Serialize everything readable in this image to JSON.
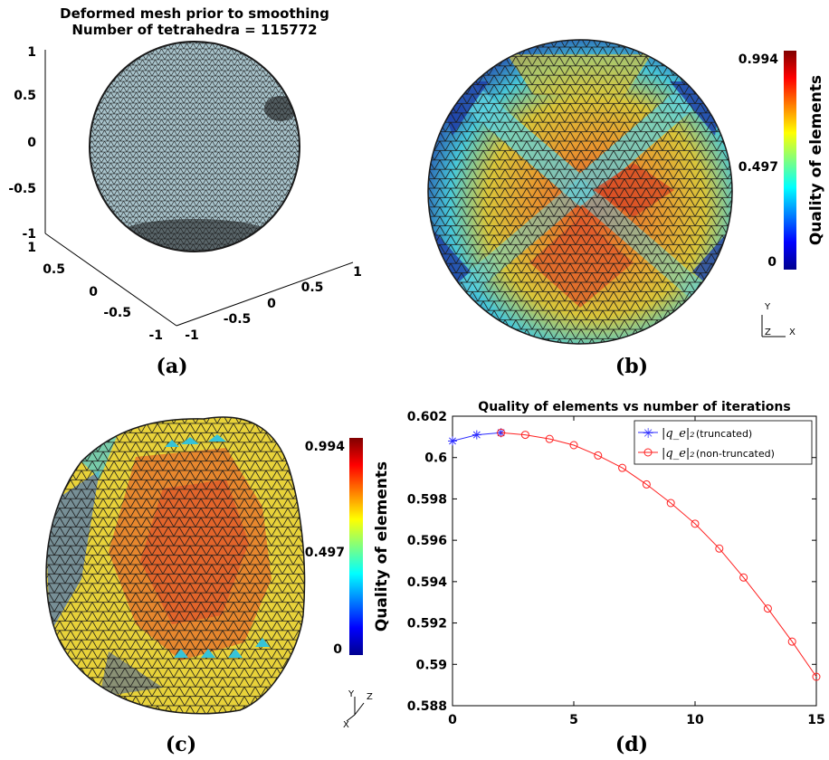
{
  "panels": {
    "a": {
      "label": "(a)",
      "title_line1": "Deformed mesh prior to smoothing",
      "title_line2": "Number of tetrahedra = 115772",
      "z_ticks": [
        "1",
        "0.5",
        "0",
        "-0.5",
        "-1"
      ],
      "y_ticks": [
        "1",
        "0.5",
        "0",
        "-0.5",
        "-1"
      ],
      "x_ticks": [
        "-1",
        "-0.5",
        "0",
        "0.5",
        "1"
      ]
    },
    "b": {
      "label": "(b)",
      "colorbar": {
        "label": "Quality of elements",
        "ticks": [
          "0.994",
          "0.497",
          "0"
        ]
      },
      "axes_triad": {
        "y": "Y",
        "z": "Z",
        "x": "X"
      }
    },
    "c": {
      "label": "(c)",
      "colorbar": {
        "label": "Quality of elements",
        "ticks": [
          "0.994",
          "0.497",
          "0"
        ]
      },
      "axes_triad": {
        "y": "Y",
        "z": "Z",
        "x": "X"
      }
    },
    "d": {
      "label": "(d)"
    }
  },
  "colors": {
    "truncated": "#2b2bff",
    "non_truncated": "#ff2020",
    "mesh_fill": "#a9c4cc",
    "mesh_line": "#1a1a1a"
  },
  "chart_data": {
    "type": "line",
    "title": "Quality of elements vs number of iterations",
    "xlabel": "",
    "ylabel": "",
    "xlim": [
      0,
      15
    ],
    "ylim": [
      0.588,
      0.602
    ],
    "x_ticks": [
      "0",
      "5",
      "10",
      "15"
    ],
    "y_ticks": [
      "0.602",
      "0.6",
      "0.598",
      "0.596",
      "0.594",
      "0.592",
      "0.59",
      "0.588"
    ],
    "grid": false,
    "legend_position": "top-right",
    "series": [
      {
        "name": "|q_e|2 (truncated)",
        "name_math": "|q_e|₂",
        "name_note": "(truncated)",
        "marker": "star",
        "x": [
          0,
          1,
          2
        ],
        "values": [
          0.6008,
          0.6011,
          0.6012
        ]
      },
      {
        "name": "|q_e|2 (non-truncated)",
        "name_math": "|q_e|₂",
        "name_note": "(non-truncated)",
        "marker": "circle",
        "x": [
          2,
          3,
          4,
          5,
          6,
          7,
          8,
          9,
          10,
          11,
          12,
          13,
          14,
          15
        ],
        "values": [
          0.6012,
          0.6011,
          0.6009,
          0.6006,
          0.6001,
          0.5995,
          0.5987,
          0.5978,
          0.5968,
          0.5956,
          0.5942,
          0.5927,
          0.5911,
          0.5894
        ]
      }
    ]
  }
}
